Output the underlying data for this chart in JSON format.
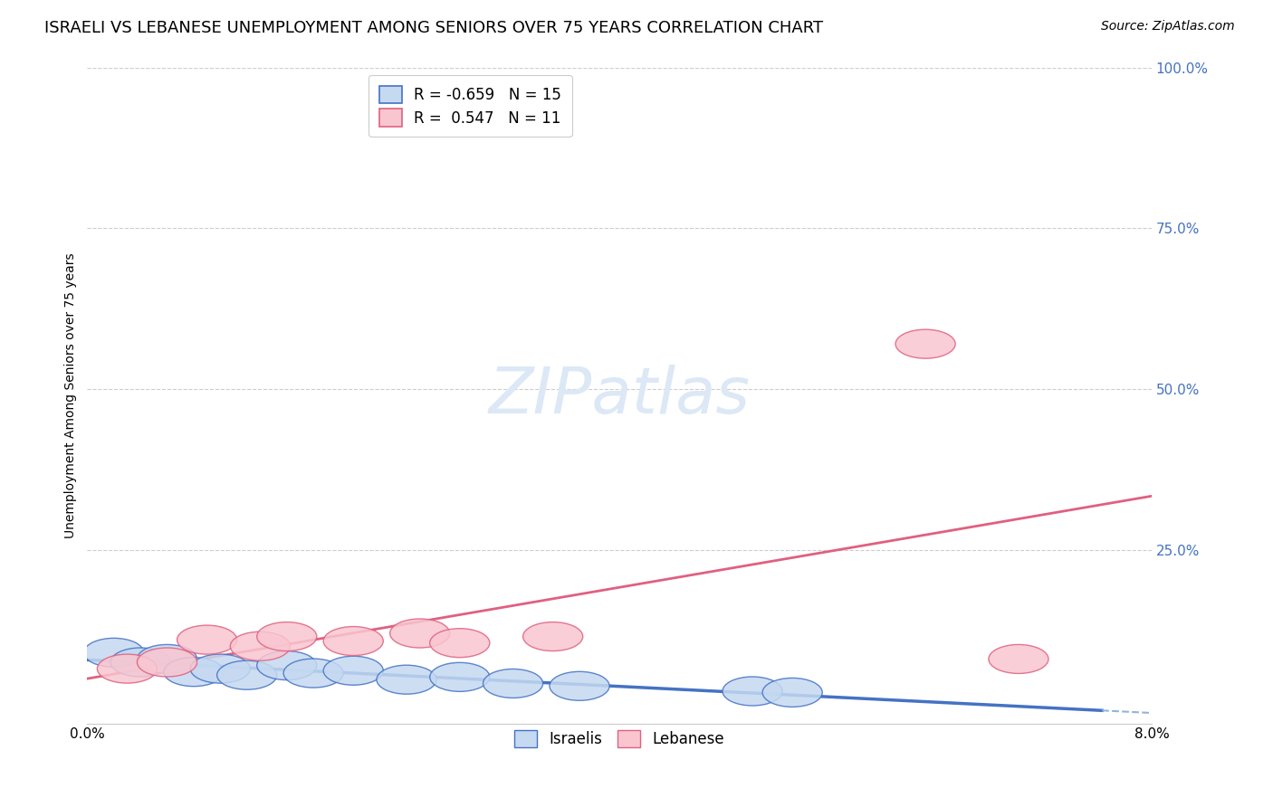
{
  "title": "ISRAELI VS LEBANESE UNEMPLOYMENT AMONG SENIORS OVER 75 YEARS CORRELATION CHART",
  "source": "Source: ZipAtlas.com",
  "ylabel": "Unemployment Among Seniors over 75 years",
  "xlim": [
    0.0,
    0.08
  ],
  "ylim": [
    -0.02,
    1.0
  ],
  "ytick_labels": [
    "100.0%",
    "75.0%",
    "50.0%",
    "25.0%"
  ],
  "ytick_vals": [
    1.0,
    0.75,
    0.5,
    0.25
  ],
  "watermark": "ZIPatlas",
  "israeli_x": [
    0.002,
    0.004,
    0.006,
    0.008,
    0.01,
    0.012,
    0.015,
    0.017,
    0.02,
    0.024,
    0.028,
    0.032,
    0.037,
    0.05,
    0.053
  ],
  "israeli_y": [
    0.09,
    0.075,
    0.08,
    0.06,
    0.065,
    0.055,
    0.07,
    0.058,
    0.062,
    0.048,
    0.052,
    0.042,
    0.038,
    0.03,
    0.028
  ],
  "lebanese_x": [
    0.003,
    0.006,
    0.009,
    0.013,
    0.015,
    0.02,
    0.025,
    0.028,
    0.035,
    0.063,
    0.07
  ],
  "lebanese_y": [
    0.065,
    0.075,
    0.11,
    0.1,
    0.115,
    0.108,
    0.12,
    0.105,
    0.115,
    0.57,
    0.08
  ],
  "israeli_R": -0.659,
  "israeli_N": 15,
  "lebanese_R": 0.547,
  "lebanese_N": 11,
  "israeli_color": "#c5d9f1",
  "lebanese_color": "#f9c6d0",
  "israeli_line_color": "#4472c4",
  "lebanese_line_color": "#e06080",
  "trendline_dashed_color": "#92b4d9",
  "title_fontsize": 13,
  "source_fontsize": 10,
  "axis_label_fontsize": 10,
  "tick_fontsize": 11,
  "legend_fontsize": 12,
  "watermark_fontsize": 52,
  "watermark_color": "#dce8f5",
  "ytick_color": "#4472c4",
  "background_color": "#ffffff",
  "grid_color": "#cccccc"
}
